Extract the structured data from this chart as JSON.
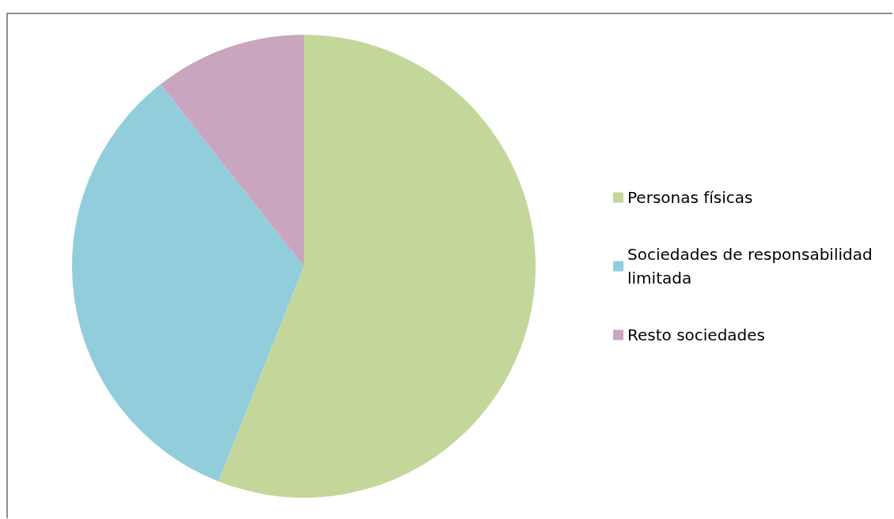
{
  "chart_data": {
    "type": "pie",
    "categories": [
      "Personas físicas",
      "Sociedades de responsabilidad limitada",
      "Resto sociedades"
    ],
    "values": [
      56,
      33.4,
      10.6
    ],
    "colors": [
      "#c4d79b",
      "#92cddc",
      "#c9a5c0"
    ],
    "legend": "right"
  }
}
